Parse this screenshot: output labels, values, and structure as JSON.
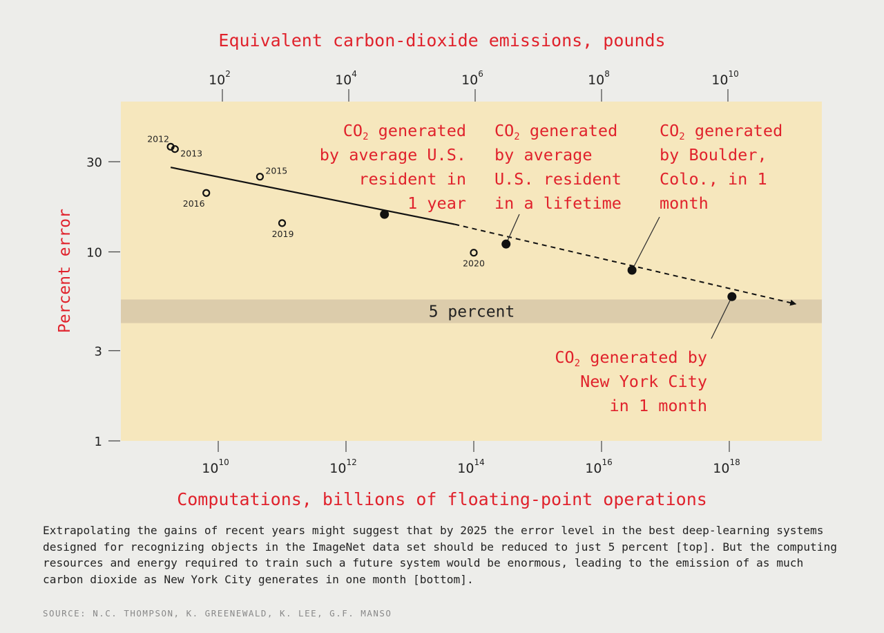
{
  "colors": {
    "accent_red": "#e0222c",
    "plot_bg": "#f6e7bd",
    "band": "#dcccab",
    "page_bg": "#ededea",
    "ink": "#111111"
  },
  "chart_data": {
    "type": "scatter",
    "top_axis": {
      "label": "Equivalent carbon-dioxide emissions, pounds",
      "scale": "log",
      "ticks": [
        {
          "value": 100,
          "base": "10",
          "exp": "2"
        },
        {
          "value": 10000,
          "base": "10",
          "exp": "4"
        },
        {
          "value": 1000000,
          "base": "10",
          "exp": "6"
        },
        {
          "value": 100000000,
          "base": "10",
          "exp": "8"
        },
        {
          "value": 10000000000,
          "base": "10",
          "exp": "10"
        }
      ]
    },
    "x_axis": {
      "label": "Computations, billions of floating-point operations",
      "scale": "log",
      "range": [
        200000000.0,
        1.5e+19
      ],
      "ticks": [
        {
          "value": 10000000000.0,
          "base": "10",
          "exp": "10"
        },
        {
          "value": 1000000000000.0,
          "base": "10",
          "exp": "12"
        },
        {
          "value": 100000000000000.0,
          "base": "10",
          "exp": "14"
        },
        {
          "value": 1e+16,
          "base": "10",
          "exp": "16"
        },
        {
          "value": 1e+18,
          "base": "10",
          "exp": "18"
        }
      ]
    },
    "y_axis": {
      "label": "Percent error",
      "scale": "log",
      "range": [
        1,
        60
      ],
      "ticks": [
        {
          "value": 1,
          "label": "1"
        },
        {
          "value": 3,
          "label": "3"
        },
        {
          "value": 10,
          "label": "10"
        },
        {
          "value": 30,
          "label": "30"
        }
      ]
    },
    "points": [
      {
        "label": "2012",
        "x": 1800000000.0,
        "y": 36
      },
      {
        "label": "2013",
        "x": 2100000000.0,
        "y": 35
      },
      {
        "label": "2015",
        "x": 45000000000.0,
        "y": 25
      },
      {
        "label": "2016",
        "x": 6500000000.0,
        "y": 20.5
      },
      {
        "label": "2019",
        "x": 100000000000.0,
        "y": 14.2
      },
      {
        "label": "2020",
        "x": 100000000000000.0,
        "y": 9.9
      }
    ],
    "trend": {
      "solid": [
        [
          1800000000.0,
          28
        ],
        [
          50000000000000.0,
          14
        ]
      ],
      "dashed": [
        [
          50000000000000.0,
          14
        ],
        [
          1.1e+19,
          5.3
        ]
      ]
    },
    "milestones": [
      {
        "name": "us-resident-year",
        "x": 4000000000000.0,
        "y": 15.8
      },
      {
        "name": "us-resident-lifetime",
        "x": 320000000000000.0,
        "y": 11
      },
      {
        "name": "boulder-month",
        "x": 3e+16,
        "y": 8
      },
      {
        "name": "nyc-month",
        "x": 1.1e+18,
        "y": 5.8
      }
    ],
    "band": {
      "label": "5 percent",
      "y_low": 4.2,
      "y_high": 5.6
    }
  },
  "annotations": {
    "us_year": {
      "co": "CO",
      "sub": "2",
      "rest": " generated\nby average U.S.\nresident in\n1 year"
    },
    "us_lifetime": {
      "co": "CO",
      "sub": "2",
      "rest": " generated\nby average\nU.S. resident\nin a lifetime"
    },
    "boulder": {
      "co": "CO",
      "sub": "2",
      "rest": " generated\nby Boulder,\nColo., in 1\nmonth"
    },
    "nyc": {
      "co": "CO",
      "sub": "2",
      "rest": " generated by\nNew York City\nin 1 month"
    }
  },
  "caption": "Extrapolating the gains of recent years might suggest that by 2025 the error level in the best deep-learning systems designed for recognizing objects in the ImageNet data set should be reduced to just 5 percent [top]. But the computing resources and energy required to train such a future system would be enormous, leading to the emission of as much carbon dioxide as New York City generates in one month [bottom].",
  "source": "SOURCE: N.C. THOMPSON, K. GREENEWALD, K. LEE, G.F. MANSO"
}
